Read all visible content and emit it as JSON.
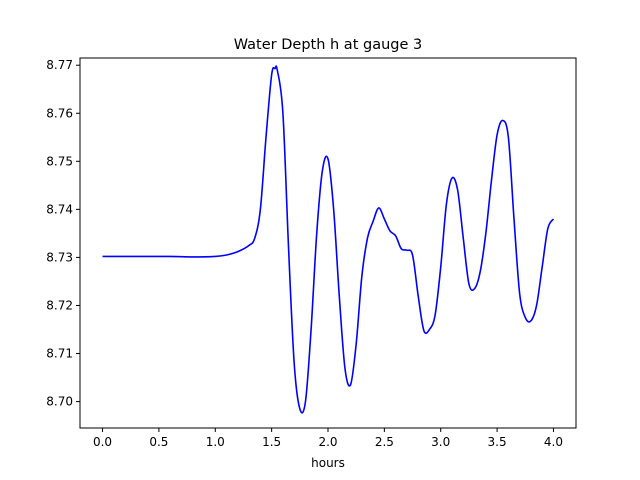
{
  "chart_data": {
    "type": "line",
    "title": "Water Depth h at gauge 3",
    "xlabel": "hours",
    "ylabel": "",
    "xlim": [
      -0.2,
      4.2
    ],
    "ylim": [
      8.6945,
      8.7715
    ],
    "xticks": [
      0.0,
      0.5,
      1.0,
      1.5,
      2.0,
      2.5,
      3.0,
      3.5,
      4.0
    ],
    "xtick_labels": [
      "0.0",
      "0.5",
      "1.0",
      "1.5",
      "2.0",
      "2.5",
      "3.0",
      "3.5",
      "4.0"
    ],
    "yticks": [
      8.7,
      8.71,
      8.72,
      8.73,
      8.74,
      8.75,
      8.76,
      8.77
    ],
    "ytick_labels": [
      "8.70",
      "8.71",
      "8.72",
      "8.73",
      "8.74",
      "8.75",
      "8.76",
      "8.77"
    ],
    "grid": false,
    "series": [
      {
        "color": "#0000ff",
        "x": [
          0.0,
          0.3,
          0.6,
          0.8,
          1.0,
          1.1,
          1.2,
          1.3,
          1.35,
          1.4,
          1.45,
          1.5,
          1.53,
          1.55,
          1.6,
          1.65,
          1.7,
          1.75,
          1.8,
          1.85,
          1.9,
          1.95,
          2.0,
          2.05,
          2.1,
          2.15,
          2.2,
          2.25,
          2.3,
          2.35,
          2.4,
          2.45,
          2.5,
          2.55,
          2.6,
          2.65,
          2.7,
          2.75,
          2.8,
          2.85,
          2.9,
          2.95,
          3.0,
          3.05,
          3.1,
          3.15,
          3.2,
          3.25,
          3.3,
          3.35,
          3.4,
          3.45,
          3.5,
          3.55,
          3.6,
          3.65,
          3.7,
          3.75,
          3.8,
          3.85,
          3.9,
          3.95,
          4.0
        ],
        "y": [
          8.7302,
          8.7302,
          8.7302,
          8.7301,
          8.7302,
          8.7305,
          8.7312,
          8.7325,
          8.734,
          8.74,
          8.755,
          8.768,
          8.7693,
          8.769,
          8.76,
          8.732,
          8.708,
          8.6985,
          8.7,
          8.715,
          8.735,
          8.748,
          8.7505,
          8.74,
          8.722,
          8.707,
          8.7035,
          8.712,
          8.726,
          8.734,
          8.7375,
          8.7403,
          8.738,
          8.7355,
          8.7345,
          8.7318,
          8.7315,
          8.7305,
          8.722,
          8.7148,
          8.715,
          8.718,
          8.728,
          8.741,
          8.7465,
          8.744,
          8.734,
          8.7245,
          8.7235,
          8.727,
          8.735,
          8.746,
          8.7555,
          8.7585,
          8.755,
          8.738,
          8.7225,
          8.7175,
          8.7168,
          8.72,
          8.728,
          8.736,
          8.738
        ]
      }
    ]
  }
}
